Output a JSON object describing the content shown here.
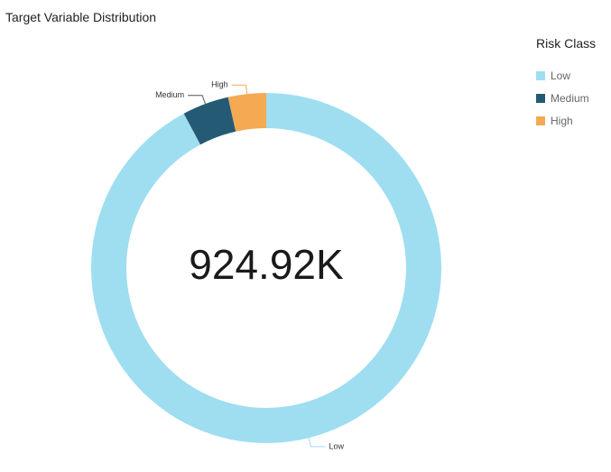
{
  "chart_data": {
    "type": "pie",
    "title": "Target Variable Distribution",
    "total_label": "924.92K",
    "legend_title": "Risk Class",
    "legend_position": "top-right",
    "categories": [
      "Low",
      "Medium",
      "High"
    ],
    "values": [
      92.2,
      4.3,
      3.5
    ],
    "colors": [
      "#9EDEF0",
      "#255A75",
      "#F5A952"
    ]
  }
}
